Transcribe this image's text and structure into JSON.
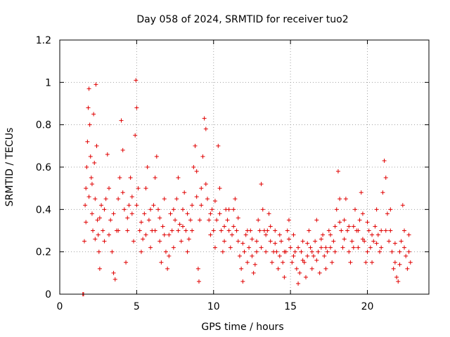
{
  "chart_data": {
    "type": "scatter",
    "title": "Day 058 of 2024, SRMTID for receiver tuo2",
    "xlabel": "GPS time / hours",
    "ylabel": "SRMTID / TECUs",
    "xlim": [
      0,
      24
    ],
    "ylim": [
      0,
      1.2
    ],
    "xticks": [
      0,
      5,
      10,
      15,
      20
    ],
    "xtick_labels": [
      "0",
      "5",
      "10",
      "15",
      "20"
    ],
    "yticks": [
      0,
      0.2,
      0.4,
      0.6,
      0.8,
      1,
      1.2
    ],
    "ytick_labels": [
      "0",
      "0.2",
      "0.4",
      "0.6",
      "0.8",
      "1",
      "1.2"
    ],
    "grid": true,
    "marker": "plus",
    "color": "#e00000",
    "series": [
      {
        "name": "SRMTID",
        "points": [
          [
            1.5,
            0.0
          ],
          [
            1.55,
            0.0
          ],
          [
            1.6,
            0.25
          ],
          [
            1.65,
            0.42
          ],
          [
            1.7,
            0.5
          ],
          [
            1.75,
            0.6
          ],
          [
            1.8,
            0.72
          ],
          [
            1.85,
            0.88
          ],
          [
            1.9,
            0.97
          ],
          [
            1.95,
            0.8
          ],
          [
            2.0,
            0.65
          ],
          [
            2.05,
            0.55
          ],
          [
            2.1,
            0.38
          ],
          [
            2.15,
            0.3
          ],
          [
            2.2,
            0.85
          ],
          [
            2.25,
            0.62
          ],
          [
            2.3,
            0.45
          ],
          [
            2.35,
            0.99
          ],
          [
            2.4,
            0.7
          ],
          [
            2.45,
            0.35
          ],
          [
            2.5,
            0.28
          ],
          [
            2.55,
            0.2
          ],
          [
            2.6,
            0.12
          ],
          [
            2.7,
            0.42
          ],
          [
            2.8,
            0.3
          ],
          [
            2.9,
            0.25
          ],
          [
            3.0,
            0.45
          ],
          [
            3.1,
            0.66
          ],
          [
            3.2,
            0.5
          ],
          [
            3.3,
            0.35
          ],
          [
            3.4,
            0.2
          ],
          [
            3.5,
            0.1
          ],
          [
            3.6,
            0.07
          ],
          [
            3.7,
            0.3
          ],
          [
            3.8,
            0.45
          ],
          [
            3.9,
            0.55
          ],
          [
            4.0,
            0.82
          ],
          [
            4.1,
            0.68
          ],
          [
            4.2,
            0.4
          ],
          [
            4.3,
            0.15
          ],
          [
            4.4,
            0.3
          ],
          [
            4.5,
            0.42
          ],
          [
            4.6,
            0.55
          ],
          [
            4.7,
            0.38
          ],
          [
            4.8,
            0.25
          ],
          [
            4.9,
            0.75
          ],
          [
            4.95,
            1.01
          ],
          [
            5.0,
            0.88
          ],
          [
            5.1,
            0.5
          ],
          [
            5.2,
            0.3
          ],
          [
            5.3,
            0.2
          ],
          [
            5.4,
            0.26
          ],
          [
            5.5,
            0.38
          ],
          [
            5.6,
            0.5
          ],
          [
            5.7,
            0.6
          ],
          [
            5.8,
            0.35
          ],
          [
            5.9,
            0.22
          ],
          [
            6.0,
            0.3
          ],
          [
            6.1,
            0.42
          ],
          [
            6.2,
            0.55
          ],
          [
            6.3,
            0.65
          ],
          [
            6.4,
            0.4
          ],
          [
            6.5,
            0.25
          ],
          [
            6.6,
            0.15
          ],
          [
            6.7,
            0.32
          ],
          [
            6.8,
            0.45
          ],
          [
            6.9,
            0.2
          ],
          [
            7.0,
            0.12
          ],
          [
            7.1,
            0.28
          ],
          [
            7.2,
            0.38
          ],
          [
            7.3,
            0.3
          ],
          [
            7.4,
            0.22
          ],
          [
            7.5,
            0.35
          ],
          [
            7.6,
            0.45
          ],
          [
            7.7,
            0.55
          ],
          [
            7.8,
            0.33
          ],
          [
            7.9,
            0.25
          ],
          [
            8.0,
            0.4
          ],
          [
            8.1,
            0.48
          ],
          [
            8.2,
            0.3
          ],
          [
            8.3,
            0.2
          ],
          [
            8.4,
            0.26
          ],
          [
            8.5,
            0.35
          ],
          [
            8.6,
            0.42
          ],
          [
            8.7,
            0.6
          ],
          [
            8.8,
            0.7
          ],
          [
            8.9,
            0.58
          ],
          [
            9.0,
            0.12
          ],
          [
            9.05,
            0.06
          ],
          [
            9.1,
            0.35
          ],
          [
            9.2,
            0.5
          ],
          [
            9.3,
            0.65
          ],
          [
            9.4,
            0.83
          ],
          [
            9.5,
            0.78
          ],
          [
            9.6,
            0.45
          ],
          [
            9.7,
            0.35
          ],
          [
            9.8,
            0.28
          ],
          [
            9.9,
            0.4
          ],
          [
            10.0,
            0.3
          ],
          [
            10.1,
            0.22
          ],
          [
            10.2,
            0.35
          ],
          [
            10.3,
            0.7
          ],
          [
            10.4,
            0.5
          ],
          [
            10.5,
            0.3
          ],
          [
            10.6,
            0.2
          ],
          [
            10.7,
            0.25
          ],
          [
            10.8,
            0.4
          ],
          [
            10.9,
            0.35
          ],
          [
            11.0,
            0.3
          ],
          [
            11.1,
            0.22
          ],
          [
            11.2,
            0.28
          ],
          [
            11.3,
            0.4
          ],
          [
            11.4,
            0.45
          ],
          [
            11.5,
            0.3
          ],
          [
            11.6,
            0.25
          ],
          [
            11.7,
            0.18
          ],
          [
            11.8,
            0.12
          ],
          [
            11.9,
            0.06
          ],
          [
            12.0,
            0.2
          ],
          [
            12.1,
            0.28
          ],
          [
            12.2,
            0.15
          ],
          [
            12.3,
            0.22
          ],
          [
            12.4,
            0.3
          ],
          [
            12.5,
            0.18
          ],
          [
            12.6,
            0.1
          ],
          [
            12.7,
            0.14
          ],
          [
            12.8,
            0.25
          ],
          [
            12.9,
            0.35
          ],
          [
            13.0,
            0.3
          ],
          [
            13.1,
            0.52
          ],
          [
            13.2,
            0.4
          ],
          [
            13.3,
            0.3
          ],
          [
            13.4,
            0.2
          ],
          [
            13.5,
            0.3
          ],
          [
            13.6,
            0.38
          ],
          [
            13.7,
            0.25
          ],
          [
            13.8,
            0.15
          ],
          [
            13.9,
            0.2
          ],
          [
            14.0,
            0.3
          ],
          [
            14.1,
            0.2
          ],
          [
            14.2,
            0.12
          ],
          [
            14.3,
            0.18
          ],
          [
            14.4,
            0.25
          ],
          [
            14.5,
            0.15
          ],
          [
            14.6,
            0.08
          ],
          [
            14.7,
            0.2
          ],
          [
            14.8,
            0.3
          ],
          [
            14.9,
            0.35
          ],
          [
            15.0,
            0.22
          ],
          [
            15.1,
            0.15
          ],
          [
            15.2,
            0.28
          ],
          [
            15.3,
            0.2
          ],
          [
            15.4,
            0.12
          ],
          [
            15.5,
            0.05
          ],
          [
            15.6,
            0.1
          ],
          [
            15.7,
            0.2
          ],
          [
            15.8,
            0.25
          ],
          [
            15.9,
            0.15
          ],
          [
            16.0,
            0.08
          ],
          [
            16.1,
            0.18
          ],
          [
            16.2,
            0.3
          ],
          [
            16.3,
            0.22
          ],
          [
            16.4,
            0.12
          ],
          [
            16.5,
            0.18
          ],
          [
            16.6,
            0.25
          ],
          [
            16.7,
            0.35
          ],
          [
            16.8,
            0.2
          ],
          [
            16.9,
            0.1
          ],
          [
            17.0,
            0.22
          ],
          [
            17.1,
            0.28
          ],
          [
            17.2,
            0.18
          ],
          [
            17.3,
            0.12
          ],
          [
            17.4,
            0.2
          ],
          [
            17.5,
            0.3
          ],
          [
            17.6,
            0.22
          ],
          [
            17.7,
            0.15
          ],
          [
            17.8,
            0.25
          ],
          [
            17.9,
            0.32
          ],
          [
            18.0,
            0.4
          ],
          [
            18.1,
            0.58
          ],
          [
            18.2,
            0.45
          ],
          [
            18.3,
            0.3
          ],
          [
            18.4,
            0.22
          ],
          [
            18.5,
            0.35
          ],
          [
            18.6,
            0.45
          ],
          [
            18.7,
            0.3
          ],
          [
            18.8,
            0.2
          ],
          [
            18.9,
            0.15
          ],
          [
            19.0,
            0.25
          ],
          [
            19.1,
            0.32
          ],
          [
            19.2,
            0.4
          ],
          [
            19.3,
            0.3
          ],
          [
            19.4,
            0.22
          ],
          [
            19.5,
            0.35
          ],
          [
            19.6,
            0.48
          ],
          [
            19.7,
            0.38
          ],
          [
            19.8,
            0.25
          ],
          [
            19.9,
            0.15
          ],
          [
            20.0,
            0.2
          ],
          [
            20.1,
            0.3
          ],
          [
            20.2,
            0.22
          ],
          [
            20.3,
            0.15
          ],
          [
            20.4,
            0.25
          ],
          [
            20.5,
            0.32
          ],
          [
            20.6,
            0.4
          ],
          [
            20.7,
            0.28
          ],
          [
            20.8,
            0.2
          ],
          [
            20.9,
            0.3
          ],
          [
            21.0,
            0.48
          ],
          [
            21.1,
            0.63
          ],
          [
            21.2,
            0.55
          ],
          [
            21.3,
            0.38
          ],
          [
            21.4,
            0.25
          ],
          [
            21.5,
            0.3
          ],
          [
            21.6,
            0.2
          ],
          [
            21.7,
            0.12
          ],
          [
            21.8,
            0.15
          ],
          [
            21.9,
            0.08
          ],
          [
            22.0,
            0.06
          ],
          [
            22.1,
            0.2
          ],
          [
            22.2,
            0.25
          ],
          [
            22.3,
            0.42
          ],
          [
            22.4,
            0.3
          ],
          [
            22.5,
            0.18
          ],
          [
            22.6,
            0.12
          ],
          [
            22.7,
            0.2
          ],
          [
            22.8,
            0.15
          ],
          [
            1.7,
            0.34
          ],
          [
            1.9,
            0.46
          ],
          [
            2.1,
            0.52
          ],
          [
            2.3,
            0.26
          ],
          [
            2.6,
            0.36
          ],
          [
            2.9,
            0.4
          ],
          [
            3.2,
            0.28
          ],
          [
            3.5,
            0.38
          ],
          [
            3.8,
            0.3
          ],
          [
            4.1,
            0.48
          ],
          [
            4.4,
            0.36
          ],
          [
            4.7,
            0.46
          ],
          [
            5.0,
            0.42
          ],
          [
            5.3,
            0.34
          ],
          [
            5.6,
            0.28
          ],
          [
            5.9,
            0.4
          ],
          [
            6.2,
            0.3
          ],
          [
            6.5,
            0.36
          ],
          [
            6.8,
            0.28
          ],
          [
            7.1,
            0.18
          ],
          [
            7.4,
            0.4
          ],
          [
            7.7,
            0.3
          ],
          [
            8.0,
            0.32
          ],
          [
            8.3,
            0.38
          ],
          [
            8.6,
            0.3
          ],
          [
            8.9,
            0.46
          ],
          [
            9.2,
            0.42
          ],
          [
            9.5,
            0.52
          ],
          [
            9.8,
            0.38
          ],
          [
            10.1,
            0.44
          ],
          [
            10.4,
            0.38
          ],
          [
            10.7,
            0.32
          ],
          [
            11.0,
            0.4
          ],
          [
            11.3,
            0.32
          ],
          [
            11.6,
            0.36
          ],
          [
            11.9,
            0.24
          ],
          [
            12.2,
            0.3
          ],
          [
            12.5,
            0.26
          ],
          [
            12.8,
            0.2
          ],
          [
            13.1,
            0.22
          ],
          [
            13.4,
            0.28
          ],
          [
            13.7,
            0.32
          ],
          [
            14.0,
            0.24
          ],
          [
            14.3,
            0.28
          ],
          [
            14.6,
            0.2
          ],
          [
            14.9,
            0.26
          ],
          [
            15.2,
            0.18
          ],
          [
            15.5,
            0.22
          ],
          [
            15.8,
            0.16
          ],
          [
            16.1,
            0.24
          ],
          [
            16.4,
            0.2
          ],
          [
            16.7,
            0.16
          ],
          [
            17.0,
            0.26
          ],
          [
            17.3,
            0.22
          ],
          [
            17.6,
            0.28
          ],
          [
            17.9,
            0.2
          ],
          [
            18.2,
            0.34
          ],
          [
            18.5,
            0.26
          ],
          [
            18.8,
            0.32
          ],
          [
            19.1,
            0.22
          ],
          [
            19.4,
            0.3
          ],
          [
            19.7,
            0.26
          ],
          [
            20.0,
            0.34
          ],
          [
            20.3,
            0.28
          ],
          [
            20.6,
            0.24
          ],
          [
            20.9,
            0.22
          ],
          [
            21.2,
            0.3
          ],
          [
            21.5,
            0.4
          ],
          [
            21.8,
            0.24
          ],
          [
            22.1,
            0.14
          ],
          [
            22.4,
            0.22
          ],
          [
            22.7,
            0.28
          ]
        ]
      }
    ]
  }
}
